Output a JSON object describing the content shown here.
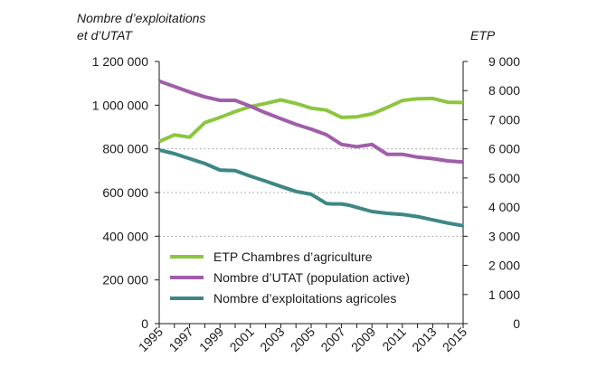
{
  "chart_data": {
    "type": "line",
    "left_axis_title": [
      "Nombre d’exploitations",
      "et d’UTAT"
    ],
    "right_axis_title": "ETP",
    "x": [
      1995,
      1996,
      1997,
      1998,
      1999,
      2000,
      2001,
      2002,
      2003,
      2004,
      2005,
      2006,
      2007,
      2008,
      2009,
      2010,
      2011,
      2012,
      2013,
      2014,
      2015
    ],
    "x_tick_labels": [
      "1995",
      "1997",
      "1999",
      "2001",
      "2003",
      "2005",
      "2007",
      "2009",
      "2011",
      "2013",
      "2015"
    ],
    "xlim": [
      1995,
      2015
    ],
    "y_left": {
      "range": [
        0,
        1200000
      ],
      "tick_labels": [
        "0",
        "200 000",
        "400 000",
        "600 000",
        "800 000",
        "1 000 000",
        "1 200 000"
      ],
      "tick_values": [
        0,
        200000,
        400000,
        600000,
        800000,
        1000000,
        1200000
      ]
    },
    "y_right": {
      "range": [
        0,
        9000
      ],
      "tick_labels": [
        "0",
        "1 000",
        "2 000",
        "3 000",
        "4 000",
        "5 000",
        "6 000",
        "7 000",
        "8 000",
        "9 000"
      ],
      "tick_values": [
        0,
        1000,
        2000,
        3000,
        4000,
        5000,
        6000,
        7000,
        8000,
        9000
      ]
    },
    "grid_values_left": [
      800000,
      600000,
      400000
    ],
    "legend_position": "bottom-left",
    "series": [
      {
        "name": "ETP Chambres d’agriculture",
        "axis": "right",
        "color": "#8cc63f",
        "x": [
          1995,
          1996,
          1997,
          1998,
          1999,
          2000,
          2001,
          2002,
          2003,
          2004,
          2005,
          2006,
          2007,
          2008,
          2009,
          2010,
          2011,
          2012,
          2013,
          2014,
          2015
        ],
        "values": [
          6250,
          6480,
          6400,
          6900,
          7080,
          7280,
          7450,
          7560,
          7680,
          7560,
          7400,
          7330,
          7080,
          7100,
          7200,
          7420,
          7660,
          7720,
          7730,
          7600,
          7590
        ]
      },
      {
        "name": "Nombre d’UTAT (population active)",
        "axis": "left",
        "color": "#a05ea9",
        "x": [
          1995,
          1996,
          1997,
          1998,
          1999,
          2000,
          2001,
          2002,
          2003,
          2004,
          2005,
          2006,
          2007,
          2008,
          2009,
          2010,
          2011,
          2012,
          2013,
          2014,
          2015
        ],
        "values": [
          1110000,
          1085000,
          1060000,
          1038000,
          1022000,
          1022000,
          995000,
          965000,
          938000,
          912000,
          890000,
          865000,
          820000,
          810000,
          820000,
          775000,
          775000,
          762000,
          755000,
          745000,
          740000
        ]
      },
      {
        "name": "Nombre d’exploitations agricoles",
        "axis": "left",
        "color": "#3d8786",
        "x": [
          1995,
          1996,
          1997,
          1998,
          1999,
          2000,
          2001,
          2002,
          2003,
          2004,
          2005,
          2006,
          2006.4,
          2007,
          2007.5,
          2008,
          2009,
          2010,
          2011,
          2012,
          2013,
          2014,
          2015
        ],
        "values": [
          795000,
          778000,
          755000,
          733000,
          703000,
          700000,
          675000,
          652000,
          628000,
          605000,
          592000,
          550000,
          548000,
          548000,
          542000,
          532000,
          513000,
          505000,
          500000,
          490000,
          475000,
          460000,
          448000
        ]
      }
    ]
  }
}
